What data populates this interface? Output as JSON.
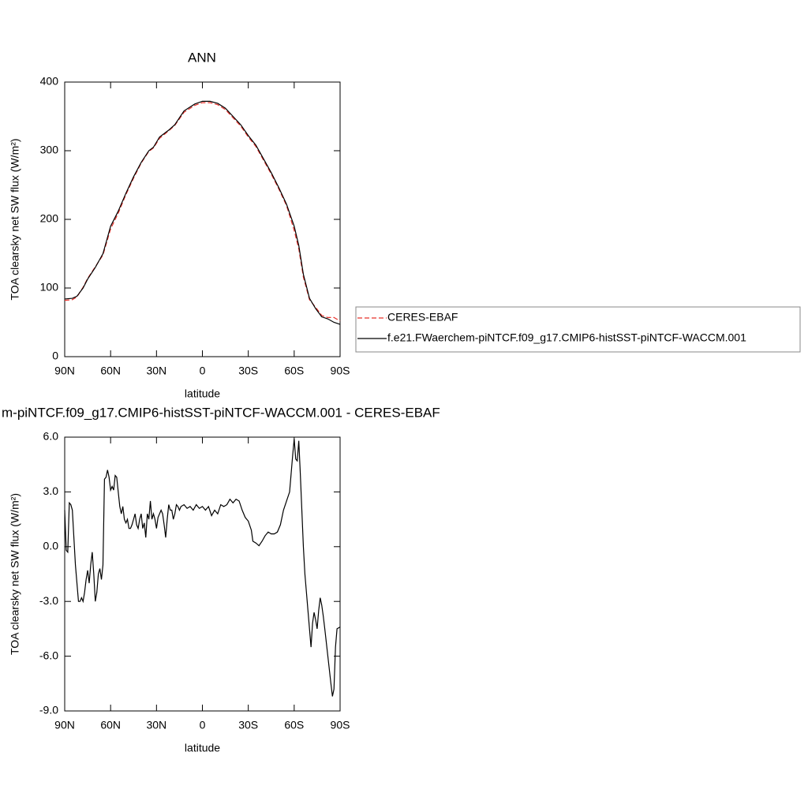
{
  "chart_data": [
    {
      "type": "line",
      "title": "ANN",
      "xlabel": "latitude",
      "ylabel": "TOA clearsky net SW flux (W/m²)",
      "x": [
        90,
        85,
        82,
        78,
        75,
        70,
        65,
        60,
        55,
        50,
        45,
        40,
        35,
        32,
        28,
        22,
        18,
        12,
        5,
        0,
        -5,
        -10,
        -15,
        -20,
        -25,
        -30,
        -35,
        -40,
        -45,
        -50,
        -55,
        -60,
        -63,
        -66,
        -70,
        -74,
        -78,
        -82,
        -86,
        -90
      ],
      "xlim": [
        90,
        -90
      ],
      "xticks": [
        {
          "value": 90,
          "label": "90N"
        },
        {
          "value": 60,
          "label": "60N"
        },
        {
          "value": 30,
          "label": "30N"
        },
        0,
        {
          "value": -30,
          "label": "30S"
        },
        {
          "value": -60,
          "label": "60S"
        },
        {
          "value": -90,
          "label": "90S"
        }
      ],
      "ylim": [
        0,
        400
      ],
      "yticks": [
        0,
        100,
        200,
        300,
        400
      ],
      "series": [
        {
          "name": "CERES-EBAF",
          "color": "#e8302a",
          "dash": true,
          "values": [
            82,
            83,
            87,
            101,
            114,
            131,
            148,
            186,
            209,
            236,
            260,
            282,
            299,
            304,
            318,
            329,
            337,
            356,
            366,
            370,
            370,
            367,
            360,
            348,
            336,
            320,
            306,
            286,
            266,
            244,
            220,
            184,
            157,
            116,
            83,
            72,
            60,
            57,
            57,
            52
          ]
        },
        {
          "name": "f.e21.FWaerchem-piNTCF.f09_g17.CMIP6-histSST-piNTCF-WACCM.001",
          "color": "#000000",
          "dash": false,
          "values": [
            84,
            85,
            88,
            100,
            113,
            130,
            150,
            190,
            212,
            238,
            262,
            283,
            300,
            305,
            320,
            330,
            338,
            358,
            368,
            372,
            372,
            369,
            362,
            350,
            338,
            322,
            308,
            288,
            268,
            246,
            222,
            190,
            162,
            120,
            85,
            70,
            58,
            55,
            50,
            47
          ]
        }
      ]
    },
    {
      "type": "line",
      "title": "m-piNTCF.f09_g17.CMIP6-histSST-piNTCF-WACCM.001 - CERES-EBAF",
      "xlabel": "latitude",
      "ylabel": "TOA clearsky net SW flux (W/m²)",
      "x": [
        90,
        89,
        88,
        87,
        86,
        85,
        84,
        83,
        82,
        81,
        80,
        79,
        78,
        77,
        76,
        75,
        74,
        73,
        72,
        71,
        70,
        69,
        68,
        67,
        66,
        65,
        64,
        63,
        62,
        61,
        60,
        59,
        58,
        57,
        56,
        55,
        54,
        53,
        52,
        51,
        50,
        49,
        48,
        47,
        46,
        45,
        44,
        43,
        42,
        41,
        40,
        39,
        38,
        37,
        36,
        35,
        34,
        33,
        32,
        31,
        30,
        29,
        28,
        27,
        26,
        25,
        24,
        23,
        22,
        21,
        20,
        19,
        18,
        17,
        16,
        15,
        14,
        12,
        10,
        8,
        6,
        4,
        2,
        0,
        -2,
        -4,
        -6,
        -8,
        -10,
        -12,
        -14,
        -16,
        -18,
        -20,
        -22,
        -24,
        -26,
        -28,
        -30,
        -32,
        -33,
        -35,
        -37,
        -39,
        -41,
        -43,
        -45,
        -47,
        -49,
        -51,
        -53,
        -55,
        -57,
        -58,
        -59,
        -60,
        -61,
        -62,
        -63,
        -64,
        -65,
        -66,
        -67,
        -68,
        -69,
        -70,
        -71,
        -72,
        -73,
        -74,
        -75,
        -76,
        -77,
        -78,
        -79,
        -80,
        -82,
        -84,
        -85,
        -86,
        -87,
        -88,
        -90
      ],
      "xlim": [
        90,
        -90
      ],
      "xticks": [
        {
          "value": 90,
          "label": "90N"
        },
        {
          "value": 60,
          "label": "60N"
        },
        {
          "value": 30,
          "label": "30N"
        },
        0,
        {
          "value": -30,
          "label": "30S"
        },
        {
          "value": -60,
          "label": "60S"
        },
        {
          "value": -90,
          "label": "90S"
        }
      ],
      "ylim": [
        -9,
        6
      ],
      "yticks": [
        {
          "value": -9,
          "label": "-9.0"
        },
        {
          "value": -6,
          "label": "-6.0"
        },
        {
          "value": -3,
          "label": "-3.0"
        },
        {
          "value": 0,
          "label": "0.0"
        },
        {
          "value": 3,
          "label": "3.0"
        },
        {
          "value": 6,
          "label": "6.0"
        }
      ],
      "series": [
        {
          "color": "#000000",
          "dash": false,
          "values": [
            2.0,
            -0.2,
            -0.3,
            2.4,
            2.3,
            2.0,
            0.5,
            -1.0,
            -2.0,
            -3.0,
            -3.0,
            -2.8,
            -3.0,
            -2.5,
            -1.8,
            -1.3,
            -2.0,
            -1.0,
            -0.3,
            -1.5,
            -3.0,
            -2.5,
            -1.5,
            -1.2,
            -1.8,
            -1.0,
            3.7,
            3.8,
            4.2,
            3.8,
            3.1,
            3.3,
            3.1,
            3.9,
            3.8,
            3.0,
            2.2,
            1.8,
            2.2,
            1.5,
            1.3,
            1.5,
            1.0,
            1.0,
            1.2,
            1.5,
            1.8,
            1.2,
            1.0,
            1.5,
            1.8,
            1.0,
            1.3,
            0.5,
            1.8,
            1.5,
            2.5,
            1.5,
            1.8,
            1.5,
            1.0,
            1.6,
            1.8,
            2.0,
            1.8,
            1.2,
            0.5,
            1.5,
            2.3,
            2.0,
            2.0,
            1.5,
            1.8,
            2.3,
            2.2,
            2.0,
            2.2,
            2.3,
            2.1,
            2.2,
            2.0,
            2.3,
            2.1,
            2.2,
            2.0,
            2.2,
            1.7,
            2.0,
            1.8,
            2.3,
            2.2,
            2.3,
            2.6,
            2.4,
            2.6,
            2.5,
            2.0,
            1.6,
            1.4,
            0.9,
            0.3,
            0.2,
            0.05,
            0.3,
            0.6,
            0.8,
            0.7,
            0.7,
            0.8,
            1.2,
            2.0,
            2.5,
            3.0,
            4.0,
            5.0,
            5.9,
            4.8,
            4.7,
            5.8,
            4.0,
            2.0,
            0.0,
            -1.5,
            -2.5,
            -3.5,
            -4.5,
            -5.5,
            -4.2,
            -3.6,
            -4.0,
            -4.5,
            -3.5,
            -2.8,
            -3.2,
            -3.8,
            -4.5,
            -6.0,
            -7.5,
            -8.2,
            -7.8,
            -5.5,
            -4.5,
            -4.4
          ]
        }
      ]
    }
  ]
}
